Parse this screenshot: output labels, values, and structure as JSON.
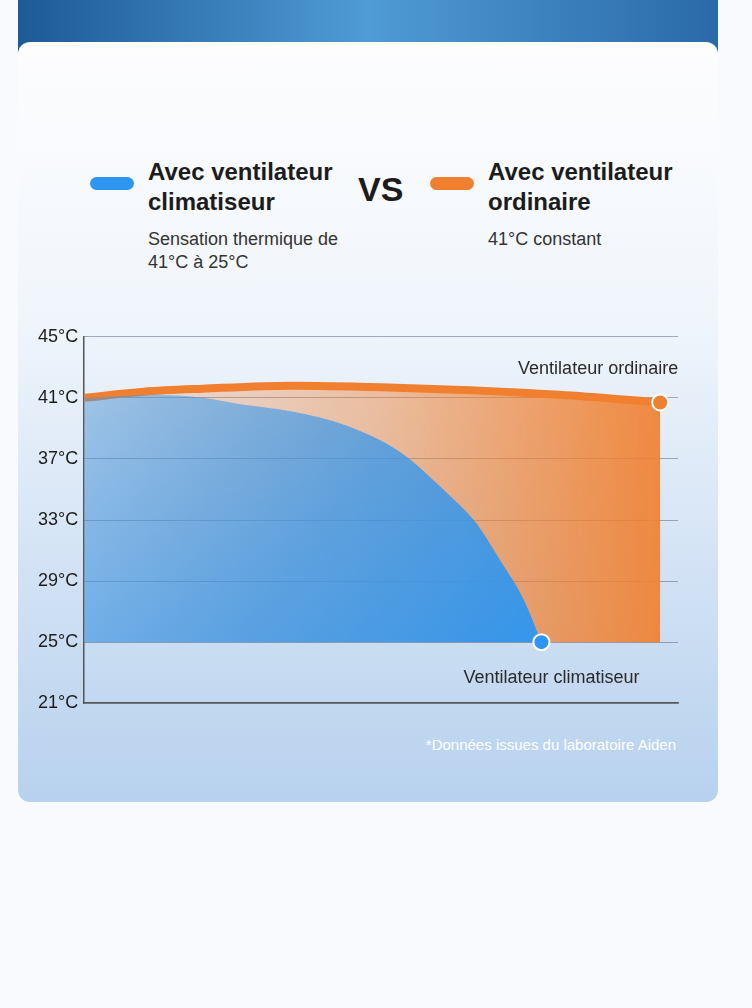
{
  "chart_data": {
    "type": "area",
    "xlim": [
      0,
      100
    ],
    "ylim": [
      21,
      45
    ],
    "yticks": [
      {
        "value": 21,
        "label": "21°C"
      },
      {
        "value": 25,
        "label": "25°C"
      },
      {
        "value": 29,
        "label": "29°C"
      },
      {
        "value": 33,
        "label": "33°C"
      },
      {
        "value": 37,
        "label": "37°C"
      },
      {
        "value": 41,
        "label": "41°C"
      },
      {
        "value": 45,
        "label": "45°C"
      }
    ],
    "grid": true,
    "tick_labels": "y",
    "legend": "top",
    "vs_label": "VS",
    "note": "*Données issues du laboratoire Aiden",
    "series": [
      {
        "name": "Avec ventilateur climatiseur",
        "description": "Sensation thermique de 41°C à 25°C",
        "end_label": "Ventilateur climatiseur",
        "color": "#2f96f0",
        "x": [
          0,
          5,
          12,
          20,
          26,
          35,
          44,
          53,
          61,
          66,
          70,
          74,
          77
        ],
        "values": [
          41,
          41.1,
          41.2,
          41,
          40.6,
          40.1,
          39.2,
          37.5,
          34.8,
          32.8,
          30.4,
          27.8,
          25
        ]
      },
      {
        "name": "Avec ventilateur ordinaire",
        "description": "41°C constant",
        "end_label": "Ventilateur ordinaire",
        "color": "#f08030",
        "x": [
          0,
          10,
          20,
          35,
          50,
          65,
          80,
          97
        ],
        "values": [
          41,
          41.4,
          41.6,
          41.8,
          41.7,
          41.5,
          41.2,
          40.7
        ]
      }
    ]
  }
}
